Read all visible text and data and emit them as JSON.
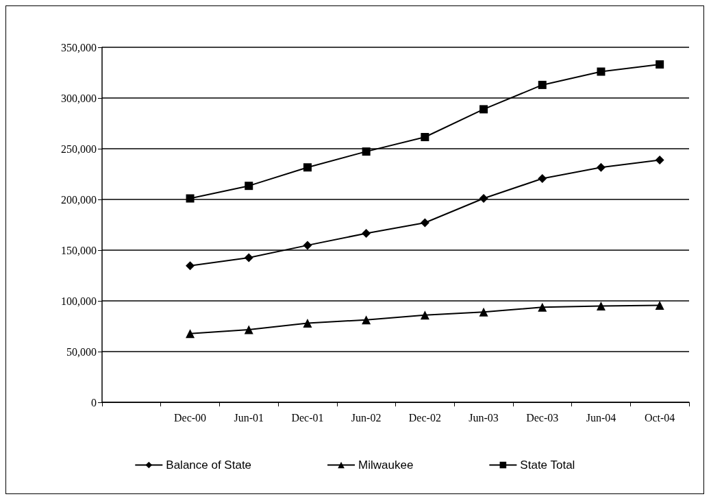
{
  "chart_data": {
    "type": "line",
    "categories": [
      null,
      "Dec-00",
      "Jun-01",
      "Dec-01",
      "Jun-02",
      "Dec-02",
      "Jun-03",
      "Dec-03",
      "Jun-04",
      "Oct-04"
    ],
    "ylim": [
      0,
      350000
    ],
    "yticks": [
      0,
      {
        "value": 50000,
        "label": "50,000"
      },
      {
        "value": 100000,
        "label": "100,000"
      },
      {
        "value": 150000,
        "label": "150,000"
      },
      {
        "value": 200000,
        "label": "200,000"
      },
      {
        "value": 250000,
        "label": "250,000"
      },
      {
        "value": 300000,
        "label": "300,000"
      },
      {
        "value": 350000,
        "label": "350,000"
      }
    ],
    "grid": "y",
    "legend": "bottom",
    "series": [
      {
        "name": "Balance of State",
        "color": "#000000",
        "marker": "diamond",
        "values": [
          null,
          134700,
          142500,
          154800,
          166600,
          177000,
          201000,
          220600,
          231600,
          238800
        ]
      },
      {
        "name": "Milwaukee",
        "color": "#000000",
        "marker": "triangle",
        "values": [
          null,
          67700,
          71600,
          78100,
          81300,
          85900,
          89100,
          93700,
          95000,
          95600
        ]
      },
      {
        "name": "State Total",
        "color": "#000000",
        "marker": "square",
        "values": [
          null,
          201000,
          213400,
          231600,
          247200,
          261500,
          288900,
          312900,
          326000,
          333100
        ]
      }
    ]
  }
}
